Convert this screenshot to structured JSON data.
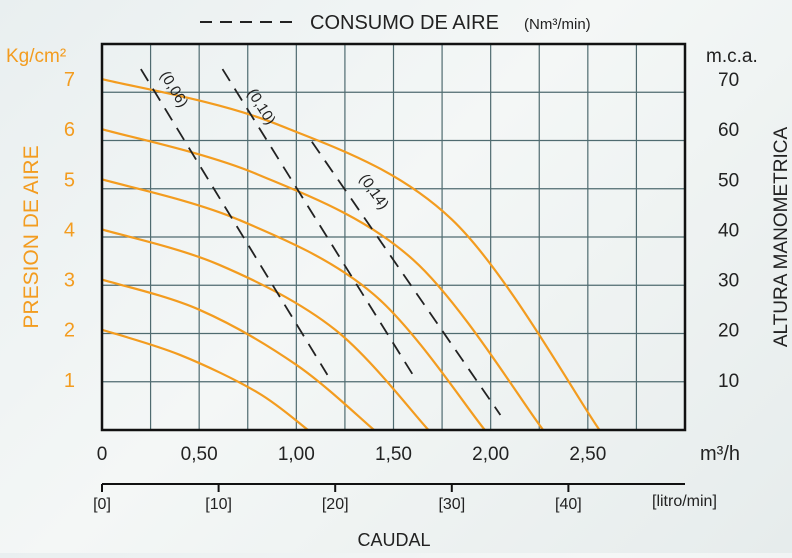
{
  "colors": {
    "pressure_curve": "#f39c1f",
    "air_curve": "#222222",
    "grid": "#4f6b70",
    "left_axis_text": "#f39c1f",
    "right_axis_text": "#222222"
  },
  "chart_data": {
    "type": "line",
    "legend_label": "CONSUMO DE AIRE",
    "legend_unit": "(Nm³/min)",
    "left_unit": "Kg/cm²",
    "left_axis_label": "PRESION DE AIRE",
    "right_unit": "m.c.a.",
    "right_axis_label": "ALTURA MANOMETRICA",
    "x_unit": "m³/h",
    "x2_unit": "[litro/min]",
    "x_title": "CAUDAL",
    "xlim": [
      0,
      3.0
    ],
    "ylim": [
      0,
      7.7
    ],
    "grid": true,
    "x_ticks": [
      {
        "value": 0,
        "label": "0"
      },
      {
        "value": 0.5,
        "label": "0,50"
      },
      {
        "value": 1.0,
        "label": "1,00"
      },
      {
        "value": 1.5,
        "label": "1,50"
      },
      {
        "value": 2.0,
        "label": "2,00"
      },
      {
        "value": 2.5,
        "label": "2,50"
      }
    ],
    "x2_ticks": [
      {
        "value": 0,
        "label": "[0]"
      },
      {
        "value": 0.6,
        "label": "[10]"
      },
      {
        "value": 1.2,
        "label": "[20]"
      },
      {
        "value": 1.8,
        "label": "[30]"
      },
      {
        "value": 2.4,
        "label": "[40]"
      }
    ],
    "left_ticks": [
      {
        "value": 1,
        "label": "1"
      },
      {
        "value": 2,
        "label": "2"
      },
      {
        "value": 3,
        "label": "3"
      },
      {
        "value": 4,
        "label": "4"
      },
      {
        "value": 5,
        "label": "5"
      },
      {
        "value": 6,
        "label": "6"
      },
      {
        "value": 7,
        "label": "7"
      }
    ],
    "right_ticks": [
      {
        "value": 1,
        "label": "10"
      },
      {
        "value": 2,
        "label": "20"
      },
      {
        "value": 3,
        "label": "30"
      },
      {
        "value": 4,
        "label": "40"
      },
      {
        "value": 5,
        "label": "50"
      },
      {
        "value": 6,
        "label": "60"
      },
      {
        "value": 7,
        "label": "70"
      }
    ],
    "pressure_series": [
      {
        "pressure": 2,
        "points": [
          [
            0,
            2.0
          ],
          [
            0.4,
            1.5
          ],
          [
            0.8,
            0.75
          ],
          [
            1.06,
            0
          ]
        ]
      },
      {
        "pressure": 3,
        "points": [
          [
            0,
            3.0
          ],
          [
            0.5,
            2.4
          ],
          [
            1.0,
            1.3
          ],
          [
            1.4,
            0
          ]
        ]
      },
      {
        "pressure": 4,
        "points": [
          [
            0,
            4.0
          ],
          [
            0.6,
            3.3
          ],
          [
            1.2,
            2.0
          ],
          [
            1.68,
            0
          ]
        ]
      },
      {
        "pressure": 5,
        "points": [
          [
            0,
            5.0
          ],
          [
            0.7,
            4.2
          ],
          [
            1.4,
            2.7
          ],
          [
            1.97,
            0
          ]
        ]
      },
      {
        "pressure": 6,
        "points": [
          [
            0,
            6.0
          ],
          [
            0.8,
            5.1
          ],
          [
            1.6,
            3.4
          ],
          [
            2.27,
            0
          ]
        ]
      },
      {
        "pressure": 7,
        "points": [
          [
            0,
            7.0
          ],
          [
            0.9,
            6.1
          ],
          [
            1.8,
            4.2
          ],
          [
            2.56,
            0
          ]
        ]
      }
    ],
    "air_series": [
      {
        "label": "(0,06)",
        "points": [
          [
            0.2,
            7.2
          ],
          [
            1.16,
            1.1
          ]
        ],
        "label_at": [
          0.35,
          6.75
        ]
      },
      {
        "label": "(0,10)",
        "points": [
          [
            0.62,
            7.2
          ],
          [
            1.6,
            1.1
          ]
        ],
        "label_at": [
          0.8,
          6.4
        ]
      },
      {
        "label": "(0,14)",
        "points": [
          [
            1.08,
            5.75
          ],
          [
            2.05,
            0.3
          ]
        ],
        "label_at": [
          1.38,
          4.7
        ]
      }
    ]
  }
}
